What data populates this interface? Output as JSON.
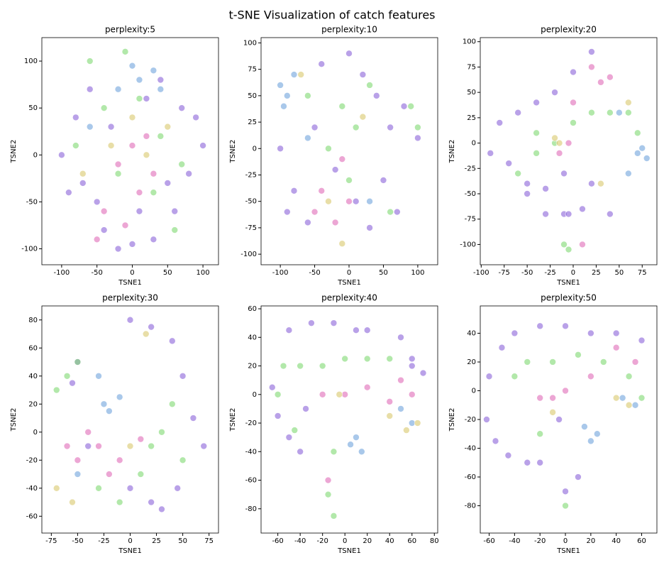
{
  "title": "t-SNE Visualization of catch features",
  "chart_data": [
    {
      "type": "scatter",
      "title": "perplexity:5",
      "xlabel": "TSNE1",
      "ylabel": "TSNE2",
      "xlim": [
        -128,
        122
      ],
      "ylim": [
        -117,
        125
      ],
      "xticks": [
        -100,
        -50,
        0,
        50,
        100
      ],
      "yticks": [
        -100,
        -50,
        0,
        50,
        100
      ],
      "series": [
        {
          "color": "#8a63d8",
          "x": [
            -100,
            -80,
            -60,
            -40,
            -20,
            0,
            30,
            60,
            80,
            100,
            90,
            70,
            40,
            10,
            -30,
            -70,
            -90,
            50,
            -50,
            20
          ],
          "y": [
            0,
            40,
            70,
            -80,
            -100,
            -95,
            -90,
            -60,
            -20,
            10,
            40,
            50,
            80,
            -60,
            30,
            -30,
            -40,
            -30,
            -50,
            60
          ]
        },
        {
          "color": "#7fd872",
          "x": [
            -60,
            -40,
            -20,
            10,
            40,
            60,
            -80,
            30,
            -10,
            70
          ],
          "y": [
            100,
            50,
            -20,
            60,
            20,
            -80,
            10,
            -40,
            110,
            -10
          ]
        },
        {
          "color": "#e06ab8",
          "x": [
            -20,
            0,
            10,
            -40,
            20,
            -50,
            30,
            -10
          ],
          "y": [
            -10,
            10,
            -40,
            -60,
            20,
            -90,
            -20,
            -75
          ]
        },
        {
          "color": "#6fa4dc",
          "x": [
            10,
            30,
            -20,
            0,
            40,
            -60
          ],
          "y": [
            80,
            90,
            70,
            95,
            70,
            30
          ]
        },
        {
          "color": "#d8c86c",
          "x": [
            -30,
            20,
            50,
            -70,
            0
          ],
          "y": [
            10,
            0,
            30,
            -20,
            40
          ]
        }
      ]
    },
    {
      "type": "scatter",
      "title": "perplexity:10",
      "xlabel": "TSNE1",
      "ylabel": "TSNE2",
      "xlim": [
        -128,
        129
      ],
      "ylim": [
        -110,
        105
      ],
      "xticks": [
        -100,
        -50,
        0,
        50,
        100
      ],
      "yticks": [
        -100,
        -75,
        -50,
        -25,
        0,
        25,
        50,
        75,
        100
      ],
      "series": [
        {
          "color": "#8a63d8",
          "x": [
            -100,
            -80,
            -60,
            -40,
            0,
            20,
            40,
            60,
            80,
            100,
            -90,
            -50,
            30,
            70,
            50,
            -20,
            10
          ],
          "y": [
            0,
            -40,
            -70,
            80,
            90,
            70,
            50,
            20,
            40,
            10,
            -60,
            20,
            -75,
            -60,
            -30,
            -20,
            -50
          ]
        },
        {
          "color": "#7fd872",
          "x": [
            -10,
            10,
            30,
            -30,
            60,
            90,
            100,
            0,
            -60
          ],
          "y": [
            40,
            20,
            60,
            0,
            -60,
            40,
            20,
            -30,
            50
          ]
        },
        {
          "color": "#e06ab8",
          "x": [
            -50,
            -40,
            -20,
            0,
            -10
          ],
          "y": [
            -60,
            -40,
            -70,
            -50,
            -10
          ]
        },
        {
          "color": "#6fa4dc",
          "x": [
            -100,
            -90,
            -80,
            -95,
            -60,
            30
          ],
          "y": [
            60,
            50,
            70,
            40,
            10,
            -50
          ]
        },
        {
          "color": "#d8c86c",
          "x": [
            -70,
            -10,
            -30,
            20
          ],
          "y": [
            70,
            -90,
            -50,
            30
          ]
        }
      ]
    },
    {
      "type": "scatter",
      "title": "perplexity:20",
      "xlabel": "TSNE1",
      "ylabel": "TSNE2",
      "xlim": [
        -101,
        91
      ],
      "ylim": [
        -120,
        104
      ],
      "xticks": [
        -100,
        -75,
        -50,
        -25,
        0,
        25,
        50,
        75
      ],
      "yticks": [
        -100,
        -75,
        -50,
        -25,
        0,
        25,
        50,
        75,
        100
      ],
      "series": [
        {
          "color": "#8a63d8",
          "x": [
            -80,
            -60,
            -40,
            -20,
            0,
            20,
            -90,
            -70,
            -50,
            -30,
            -10,
            -50,
            -30,
            -10,
            20,
            40,
            10,
            -5
          ],
          "y": [
            20,
            30,
            40,
            50,
            70,
            90,
            -10,
            -20,
            -50,
            -70,
            -70,
            -40,
            -45,
            -30,
            -40,
            -70,
            -65,
            -70
          ]
        },
        {
          "color": "#7fd872",
          "x": [
            -40,
            -20,
            0,
            20,
            40,
            60,
            -60,
            -40,
            70,
            -10,
            -5
          ],
          "y": [
            10,
            0,
            20,
            30,
            30,
            30,
            -30,
            -10,
            10,
            -100,
            -105
          ]
        },
        {
          "color": "#e06ab8",
          "x": [
            0,
            20,
            30,
            -15,
            -5,
            10,
            40
          ],
          "y": [
            40,
            75,
            60,
            -10,
            0,
            -100,
            65
          ]
        },
        {
          "color": "#6fa4dc",
          "x": [
            70,
            75,
            80,
            60,
            50
          ],
          "y": [
            -10,
            -5,
            -15,
            -30,
            30
          ]
        },
        {
          "color": "#d8c86c",
          "x": [
            -15,
            -20,
            60,
            30
          ],
          "y": [
            0,
            5,
            40,
            -40
          ]
        }
      ]
    },
    {
      "type": "scatter",
      "title": "perplexity:30",
      "xlabel": "TSNE1",
      "ylabel": "TSNE2",
      "xlim": [
        -84,
        84
      ],
      "ylim": [
        -72,
        90
      ],
      "xticks": [
        -75,
        -50,
        -25,
        0,
        25,
        50,
        75
      ],
      "yticks": [
        -60,
        -40,
        -20,
        0,
        20,
        40,
        60,
        80
      ],
      "series": [
        {
          "color": "#8a63d8",
          "x": [
            0,
            20,
            40,
            50,
            60,
            70,
            45,
            30,
            -50,
            -55,
            -40,
            20,
            0
          ],
          "y": [
            80,
            75,
            65,
            40,
            10,
            -10,
            -40,
            -55,
            50,
            35,
            -10,
            -50,
            -40
          ]
        },
        {
          "color": "#7fd872",
          "x": [
            -70,
            -60,
            -50,
            40,
            30,
            50,
            -30,
            -10,
            10,
            20
          ],
          "y": [
            30,
            40,
            50,
            20,
            0,
            -20,
            -40,
            -50,
            -30,
            -10
          ]
        },
        {
          "color": "#e06ab8",
          "x": [
            -60,
            -50,
            -40,
            -30,
            -20,
            -10,
            10
          ],
          "y": [
            -10,
            -20,
            0,
            -10,
            -30,
            -20,
            -5
          ]
        },
        {
          "color": "#6fa4dc",
          "x": [
            -25,
            -20,
            -10,
            -30,
            -50
          ],
          "y": [
            20,
            15,
            25,
            40,
            -30
          ]
        },
        {
          "color": "#d8c86c",
          "x": [
            -70,
            -55,
            0,
            15
          ],
          "y": [
            -40,
            -50,
            -10,
            70
          ]
        }
      ]
    },
    {
      "type": "scatter",
      "title": "perplexity:40",
      "xlabel": "TSNE1",
      "ylabel": "TSNE2",
      "xlim": [
        -75,
        83
      ],
      "ylim": [
        -97,
        62
      ],
      "xticks": [
        -60,
        -40,
        -20,
        0,
        20,
        40,
        60,
        80
      ],
      "yticks": [
        -80,
        -60,
        -40,
        -20,
        0,
        20,
        40,
        60
      ],
      "series": [
        {
          "color": "#8a63d8",
          "x": [
            -50,
            -30,
            -10,
            10,
            20,
            50,
            60,
            -65,
            -60,
            -50,
            -40,
            -35,
            60,
            70
          ],
          "y": [
            45,
            50,
            50,
            45,
            45,
            40,
            20,
            5,
            -15,
            -30,
            -40,
            -10,
            25,
            15
          ]
        },
        {
          "color": "#7fd872",
          "x": [
            -55,
            -40,
            -20,
            0,
            20,
            40,
            -60,
            -10,
            -15,
            -10,
            -45
          ],
          "y": [
            20,
            20,
            20,
            25,
            25,
            25,
            0,
            -40,
            -70,
            -85,
            -25
          ]
        },
        {
          "color": "#e06ab8",
          "x": [
            -20,
            0,
            20,
            40,
            50,
            60,
            -15
          ],
          "y": [
            0,
            0,
            5,
            -5,
            10,
            0,
            -60
          ]
        },
        {
          "color": "#6fa4dc",
          "x": [
            10,
            15,
            5,
            50,
            60
          ],
          "y": [
            -30,
            -40,
            -35,
            -10,
            -20
          ]
        },
        {
          "color": "#d8c86c",
          "x": [
            40,
            55,
            65,
            -5
          ],
          "y": [
            -15,
            -25,
            -20,
            0
          ]
        }
      ]
    },
    {
      "type": "scatter",
      "title": "perplexity:50",
      "xlabel": "TSNE1",
      "ylabel": "TSNE2",
      "xlim": [
        -67,
        72
      ],
      "ylim": [
        -99,
        59
      ],
      "xticks": [
        -60,
        -40,
        -20,
        0,
        20,
        40,
        60
      ],
      "yticks": [
        -80,
        -60,
        -40,
        -20,
        0,
        20,
        40
      ],
      "series": [
        {
          "color": "#8a63d8",
          "x": [
            -60,
            -50,
            -40,
            -20,
            0,
            20,
            40,
            60,
            -62,
            -55,
            -45,
            -30,
            -20,
            -5,
            10,
            0
          ],
          "y": [
            10,
            30,
            40,
            45,
            45,
            40,
            40,
            35,
            -20,
            -35,
            -45,
            -50,
            -50,
            -20,
            -60,
            -70
          ]
        },
        {
          "color": "#7fd872",
          "x": [
            -40,
            -30,
            -10,
            10,
            30,
            50,
            60,
            -20,
            0
          ],
          "y": [
            10,
            20,
            20,
            25,
            20,
            10,
            -5,
            -30,
            -80
          ]
        },
        {
          "color": "#e06ab8",
          "x": [
            -20,
            -10,
            0,
            20,
            40,
            55
          ],
          "y": [
            -5,
            -5,
            0,
            10,
            30,
            20
          ]
        },
        {
          "color": "#6fa4dc",
          "x": [
            15,
            20,
            25,
            45,
            55
          ],
          "y": [
            -25,
            -35,
            -30,
            -5,
            -10
          ]
        },
        {
          "color": "#d8c86c",
          "x": [
            40,
            50,
            -10
          ],
          "y": [
            -5,
            -10,
            -15
          ]
        }
      ]
    }
  ]
}
